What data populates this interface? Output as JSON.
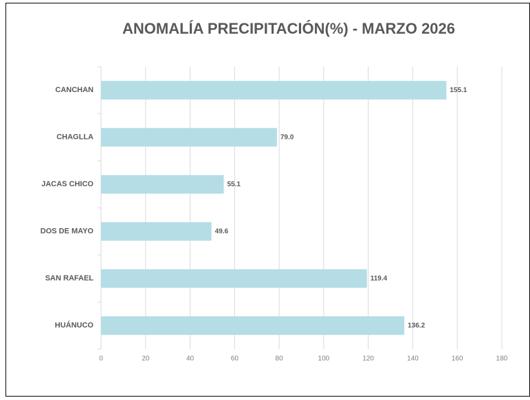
{
  "chart_data": {
    "type": "barh",
    "title": "ANOMALÍA PRECIPITACIÓN(%) - MARZO 2026",
    "categories": [
      "CANCHAN",
      "CHAGLLA",
      "JACAS CHICO",
      "DOS DE MAYO",
      "SAN RAFAEL",
      "HUÁNUCO"
    ],
    "values": [
      155.1,
      79.0,
      55.1,
      49.6,
      119.4,
      136.2
    ],
    "value_labels": [
      "155.1",
      "79.0",
      "55.1",
      "49.6",
      "119.4",
      "136.2"
    ],
    "color": "#b4dde6",
    "xlim": [
      0,
      180
    ],
    "xticks": [
      0,
      20,
      40,
      60,
      80,
      100,
      120,
      140,
      160,
      180
    ],
    "grid": true
  }
}
